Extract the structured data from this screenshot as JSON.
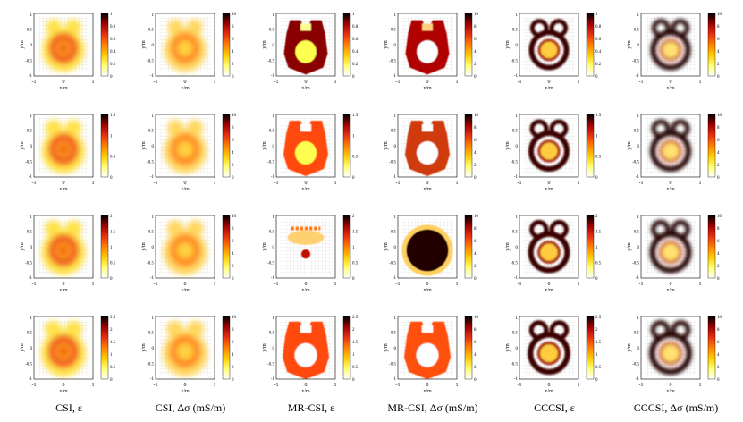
{
  "figure": {
    "axis": {
      "xlabel": "x/m",
      "ylabel": "y/m",
      "tick_neg": "-1",
      "tick_zero": "0",
      "tick_pos": "1",
      "ytick_pos_half": "0.5",
      "ytick_neg_half": "-0.5"
    },
    "columns": [
      {
        "label": "CSI, ε",
        "kind": "eps",
        "method": "csi"
      },
      {
        "label": "CSI, Δσ (mS/m)",
        "kind": "sig",
        "method": "csi"
      },
      {
        "label": "MR-CSI, ε",
        "kind": "eps",
        "method": "mr"
      },
      {
        "label": "MR-CSI, Δσ (mS/m)",
        "kind": "sig",
        "method": "mr"
      },
      {
        "label": "CCCSI, ε",
        "kind": "eps",
        "method": "cc"
      },
      {
        "label": "CCCSI, Δσ (mS/m)",
        "kind": "sig",
        "method": "cc"
      }
    ],
    "colorbar_ticks": {
      "sig": [
        "10",
        "8",
        "6",
        "4",
        "2",
        "0"
      ],
      "eps_rows": [
        [
          "1",
          "0.8",
          "0.6",
          "0.4",
          "0.2",
          "0"
        ],
        [
          "1.5",
          "1",
          "0.5",
          "0"
        ],
        [
          "2",
          "1.5",
          "1",
          "0.5",
          "0"
        ],
        [
          "2.5",
          "2",
          "1.5",
          "1",
          "0.5",
          "0"
        ]
      ]
    },
    "colormap": [
      "#ffffff",
      "#ffff70",
      "#ffcc00",
      "#ff7f00",
      "#e83010",
      "#a00000",
      "#000000"
    ]
  }
}
